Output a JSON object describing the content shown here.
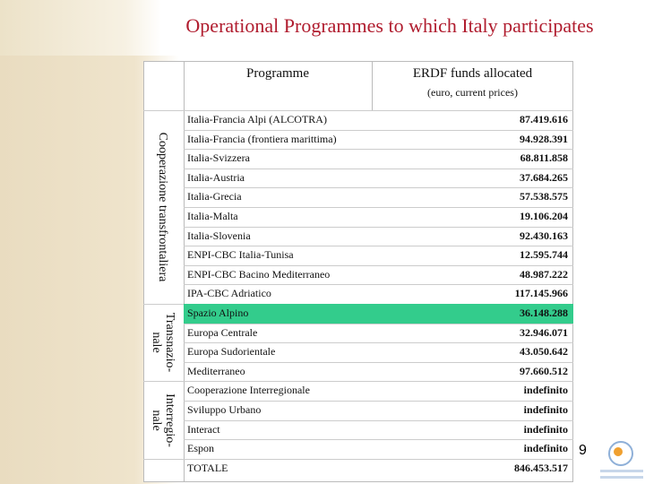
{
  "title": "Operational Programmes to which Italy participates",
  "table": {
    "header": {
      "programme": "Programme",
      "funds": "ERDF funds allocated",
      "funds_note": "(euro, current prices)"
    },
    "groups": [
      {
        "label_lines": [
          "Cooperazione transfrontaliera"
        ],
        "rows": [
          [
            "Italia-Francia Alpi (ALCOTRA)",
            "87.419.616"
          ],
          [
            "Italia-Francia (frontiera marittima)",
            "94.928.391"
          ],
          [
            "Italia-Svizzera",
            "68.811.858"
          ],
          [
            "Italia-Austria",
            "37.684.265"
          ],
          [
            "Italia-Grecia",
            "57.538.575"
          ],
          [
            "Italia-Malta",
            "19.106.204"
          ],
          [
            "Italia-Slovenia",
            "92.430.163"
          ],
          [
            "ENPI-CBC Italia-Tunisa",
            "12.595.744"
          ],
          [
            "ENPI-CBC Bacino Mediterraneo",
            "48.987.222"
          ],
          [
            "IPA-CBC Adriatico",
            "117.145.966"
          ]
        ]
      },
      {
        "label_lines": [
          "Transnazio-",
          "nale"
        ],
        "rows": [
          [
            "Spazio Alpino",
            "36.148.288"
          ],
          [
            "Europa Centrale",
            "32.946.071"
          ],
          [
            "Europa Sudorientale",
            "43.050.642"
          ],
          [
            "Mediterraneo",
            "97.660.512"
          ]
        ],
        "highlighted_row": 0
      },
      {
        "label_lines": [
          "Interregio-",
          "nale"
        ],
        "rows": [
          [
            "Cooperazione Interregionale",
            "indefinito"
          ],
          [
            "Sviluppo Urbano",
            "indefinito"
          ],
          [
            "Interact",
            "indefinito"
          ],
          [
            "Espon",
            "indefinito"
          ]
        ]
      }
    ],
    "total": [
      "TOTALE",
      "846.453.517"
    ]
  },
  "page_number": "9"
}
